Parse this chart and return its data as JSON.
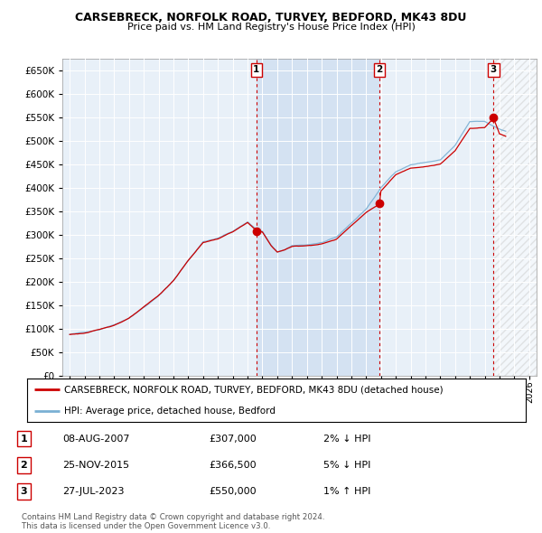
{
  "title": "CARSEBRECK, NORFOLK ROAD, TURVEY, BEDFORD, MK43 8DU",
  "subtitle": "Price paid vs. HM Land Registry's House Price Index (HPI)",
  "legend_line1": "CARSEBRECK, NORFOLK ROAD, TURVEY, BEDFORD, MK43 8DU (detached house)",
  "legend_line2": "HPI: Average price, detached house, Bedford",
  "copyright": "Contains HM Land Registry data © Crown copyright and database right 2024.\nThis data is licensed under the Open Government Licence v3.0.",
  "transactions": [
    {
      "num": 1,
      "date": "08-AUG-2007",
      "price": "£307,000",
      "change": "2% ↓ HPI",
      "year": 2007.6,
      "price_val": 307000
    },
    {
      "num": 2,
      "date": "25-NOV-2015",
      "price": "£366,500",
      "change": "5% ↓ HPI",
      "year": 2015.9,
      "price_val": 366500
    },
    {
      "num": 3,
      "date": "27-JUL-2023",
      "price": "£550,000",
      "change": "1% ↑ HPI",
      "year": 2023.6,
      "price_val": 550000
    }
  ],
  "hpi_color": "#7ab0d4",
  "price_color": "#cc0000",
  "dot_color": "#cc0000",
  "plot_bg": "#e8f0f8",
  "grid_color": "#ffffff",
  "shade_color": "#ccddf0",
  "ylim": [
    0,
    675000
  ],
  "yticks": [
    0,
    50000,
    100000,
    150000,
    200000,
    250000,
    300000,
    350000,
    400000,
    450000,
    500000,
    550000,
    600000,
    650000
  ],
  "xmin": 1994.5,
  "xmax": 2026.5,
  "transaction_line_color": "#cc0000",
  "label_box_color": "#cc0000"
}
